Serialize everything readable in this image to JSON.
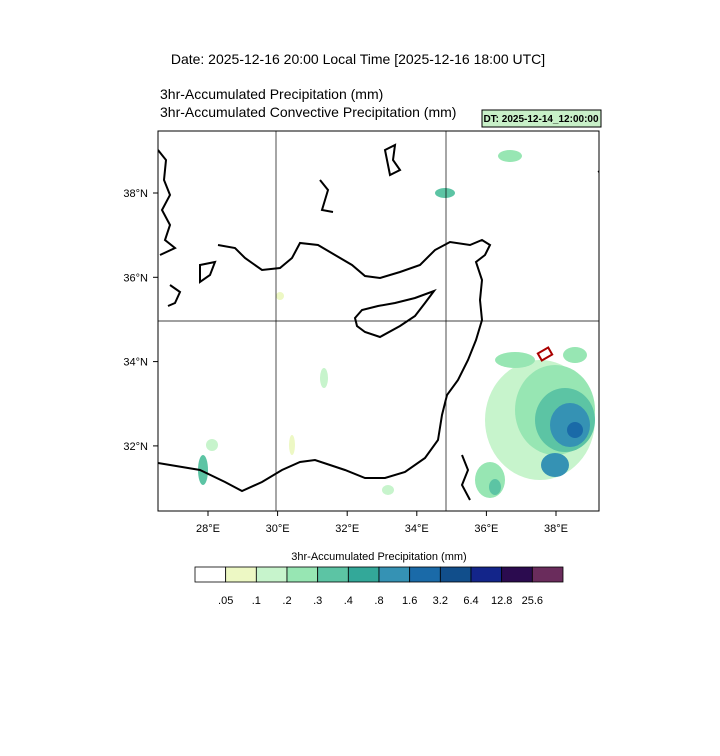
{
  "title": "Date: 2025-12-16  20:00 Local Time [2025-12-16  18:00 UTC]",
  "subtitles": [
    "3hr-Accumulated Precipitation   (mm)",
    "3hr-Accumulated Convective Precipitation   (mm)"
  ],
  "badge": "DT: 2025-12-14_12:00:00",
  "map": {
    "lon_labels": [
      "28°E",
      "30°E",
      "32°E",
      "34°E",
      "36°E",
      "38°E"
    ],
    "lat_labels": [
      "38°N",
      "36°N",
      "34°N",
      "32°N"
    ]
  },
  "colorbar": {
    "title": "3hr-Accumulated Precipitation  (mm)",
    "colors": [
      "#ffffff",
      "#edf8c4",
      "#c7f4cc",
      "#97e6b3",
      "#5cc4a4",
      "#33a899",
      "#3592b4",
      "#1a6aa8",
      "#114e8b",
      "#13258a",
      "#2b0b4f",
      "#6a2c5c"
    ],
    "labels": [
      ".05",
      ".1",
      ".2",
      ".3",
      ".4",
      ".8",
      "1.6",
      "3.2",
      "6.4",
      "12.8",
      "25.6"
    ]
  }
}
